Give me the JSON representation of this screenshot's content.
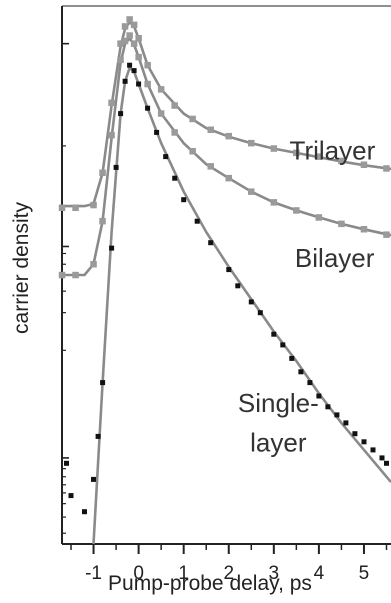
{
  "chart_data": {
    "type": "scatter",
    "title": "",
    "xlabel": "Pump-probe delay, ps",
    "ylabel": "carrier density",
    "xlim": [
      -1.7,
      5.6
    ],
    "ylim": [
      0.0,
      1.0
    ],
    "y_scale": "log",
    "y_tick_labels": "none",
    "x_ticks": [
      -1,
      0,
      1,
      2,
      3,
      4,
      5
    ],
    "x_tick_labels": [
      "-1",
      "0",
      "1",
      "2",
      "3",
      "4",
      "5"
    ],
    "grid": false,
    "legend": "none",
    "colors": {
      "trilayer_data": "#9a9a9a",
      "bilayer_data": "#9a9a9a",
      "singlelayer_data": "#111111",
      "fit_line": "#8a8a8a",
      "axis": "#222222"
    },
    "annotations": [
      {
        "text": "Trilayer",
        "x": 4.3,
        "y": 0.715
      },
      {
        "text": "Bilayer",
        "x": 4.35,
        "y": 0.515
      },
      {
        "text": "Single-",
        "x": 3.1,
        "y": 0.245
      },
      {
        "text": "layer",
        "x": 3.1,
        "y": 0.172
      }
    ],
    "series": [
      {
        "name": "Trilayer",
        "marker": "square",
        "x": [
          -1.7,
          -1.4,
          -1.0,
          -0.8,
          -0.6,
          -0.4,
          -0.3,
          -0.2,
          -0.1,
          0.0,
          0.2,
          0.5,
          0.8,
          1.2,
          1.6,
          2.0,
          2.5,
          3.0,
          3.5,
          4.0,
          4.5,
          5.0,
          5.5
        ],
        "y": [
          0.625,
          0.625,
          0.63,
          0.69,
          0.82,
          0.93,
          0.962,
          0.975,
          0.965,
          0.94,
          0.89,
          0.845,
          0.815,
          0.79,
          0.77,
          0.758,
          0.745,
          0.735,
          0.727,
          0.72,
          0.712,
          0.705,
          0.698
        ]
      },
      {
        "name": "Bilayer",
        "marker": "square",
        "x": [
          -1.7,
          -1.4,
          -1.0,
          -0.8,
          -0.6,
          -0.4,
          -0.3,
          -0.2,
          -0.1,
          0.0,
          0.2,
          0.5,
          0.8,
          1.2,
          1.6,
          2.0,
          2.5,
          3.0,
          3.5,
          4.0,
          4.5,
          5.0,
          5.5
        ],
        "y": [
          0.5,
          0.5,
          0.52,
          0.6,
          0.76,
          0.9,
          0.935,
          0.945,
          0.93,
          0.905,
          0.855,
          0.8,
          0.765,
          0.73,
          0.702,
          0.68,
          0.655,
          0.635,
          0.62,
          0.607,
          0.595,
          0.585,
          0.575
        ]
      },
      {
        "name": "Single-layer",
        "marker": "square",
        "x": [
          -1.6,
          -1.5,
          -1.2,
          -1.0,
          -0.9,
          -0.8,
          -0.6,
          -0.5,
          -0.4,
          -0.3,
          -0.2,
          -0.1,
          0.0,
          0.2,
          0.4,
          0.6,
          0.8,
          1.0,
          1.3,
          1.6,
          2.0,
          2.2,
          2.5,
          2.7,
          3.0,
          3.2,
          3.4,
          3.6,
          3.8,
          4.0,
          4.2,
          4.4,
          4.6,
          4.8,
          5.0,
          5.2,
          5.4,
          5.5
        ],
        "y": [
          0.15,
          0.09,
          0.06,
          0.12,
          0.2,
          0.3,
          0.55,
          0.7,
          0.8,
          0.86,
          0.89,
          0.88,
          0.855,
          0.81,
          0.765,
          0.72,
          0.68,
          0.64,
          0.6,
          0.56,
          0.51,
          0.48,
          0.45,
          0.43,
          0.39,
          0.37,
          0.345,
          0.32,
          0.3,
          0.275,
          0.255,
          0.24,
          0.225,
          0.205,
          0.19,
          0.175,
          0.16,
          0.15
        ]
      }
    ],
    "fits": [
      {
        "for": "Trilayer",
        "x": [
          -1.7,
          -1.2,
          -1.0,
          -0.8,
          -0.6,
          -0.4,
          -0.3,
          -0.2,
          -0.1,
          0.0,
          0.2,
          0.5,
          1.0,
          1.5,
          2.0,
          2.5,
          3.0,
          3.5,
          4.0,
          4.5,
          5.0,
          5.6
        ],
        "y": [
          0.628,
          0.628,
          0.632,
          0.69,
          0.815,
          0.925,
          0.958,
          0.97,
          0.962,
          0.94,
          0.89,
          0.845,
          0.8,
          0.773,
          0.757,
          0.745,
          0.735,
          0.727,
          0.719,
          0.711,
          0.704,
          0.697
        ]
      },
      {
        "for": "Bilayer",
        "x": [
          -1.7,
          -1.2,
          -1.0,
          -0.8,
          -0.6,
          -0.4,
          -0.3,
          -0.2,
          -0.1,
          0.0,
          0.2,
          0.5,
          1.0,
          1.5,
          2.0,
          2.5,
          3.0,
          3.5,
          4.0,
          4.5,
          5.0,
          5.6
        ],
        "y": [
          0.5,
          0.5,
          0.52,
          0.6,
          0.755,
          0.895,
          0.93,
          0.94,
          0.928,
          0.905,
          0.855,
          0.8,
          0.745,
          0.706,
          0.68,
          0.655,
          0.635,
          0.62,
          0.607,
          0.595,
          0.585,
          0.574
        ]
      },
      {
        "for": "Single-layer",
        "x": [
          -1.0,
          -0.8,
          -0.6,
          -0.4,
          -0.3,
          -0.2,
          -0.1,
          0.0,
          0.2,
          0.5,
          1.0,
          1.5,
          2.0,
          2.5,
          3.0,
          3.5,
          4.0,
          4.5,
          5.0,
          5.6
        ],
        "y": [
          0.0,
          0.3,
          0.58,
          0.8,
          0.86,
          0.885,
          0.878,
          0.855,
          0.81,
          0.745,
          0.655,
          0.58,
          0.515,
          0.455,
          0.395,
          0.34,
          0.28,
          0.225,
          0.175,
          0.115
        ]
      }
    ]
  }
}
